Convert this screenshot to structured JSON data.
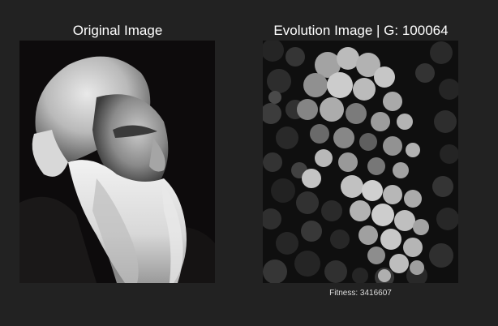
{
  "original": {
    "title": "Original Image"
  },
  "evolution": {
    "title_prefix": "Evolution Image | G: ",
    "generation": "100064",
    "fitness_label": "Fitness: ",
    "fitness_value": "3416607"
  },
  "colors": {
    "background": "#222222",
    "text": "#ffffff",
    "fitness_text": "#dcdcdc"
  }
}
